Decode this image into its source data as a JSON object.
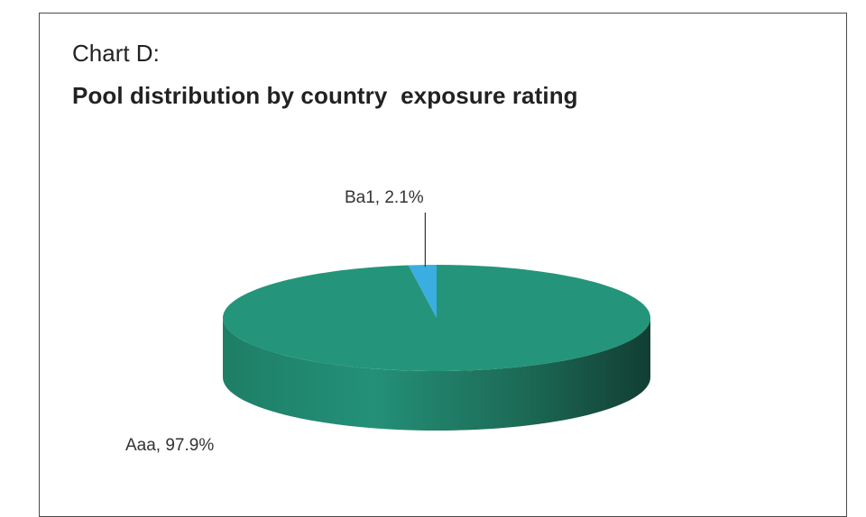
{
  "chart_data": {
    "type": "pie",
    "style": "3d",
    "label": "Chart D:",
    "title": "Pool distribution by country  exposure rating",
    "slices": [
      {
        "name": "Aaa",
        "value": 97.9,
        "label": "Aaa, 97.9%",
        "color": "#24957a"
      },
      {
        "name": "Ba1",
        "value": 2.1,
        "label": "Ba1, 2.1%",
        "color": "#3aaee0"
      }
    ],
    "legend": "none"
  }
}
